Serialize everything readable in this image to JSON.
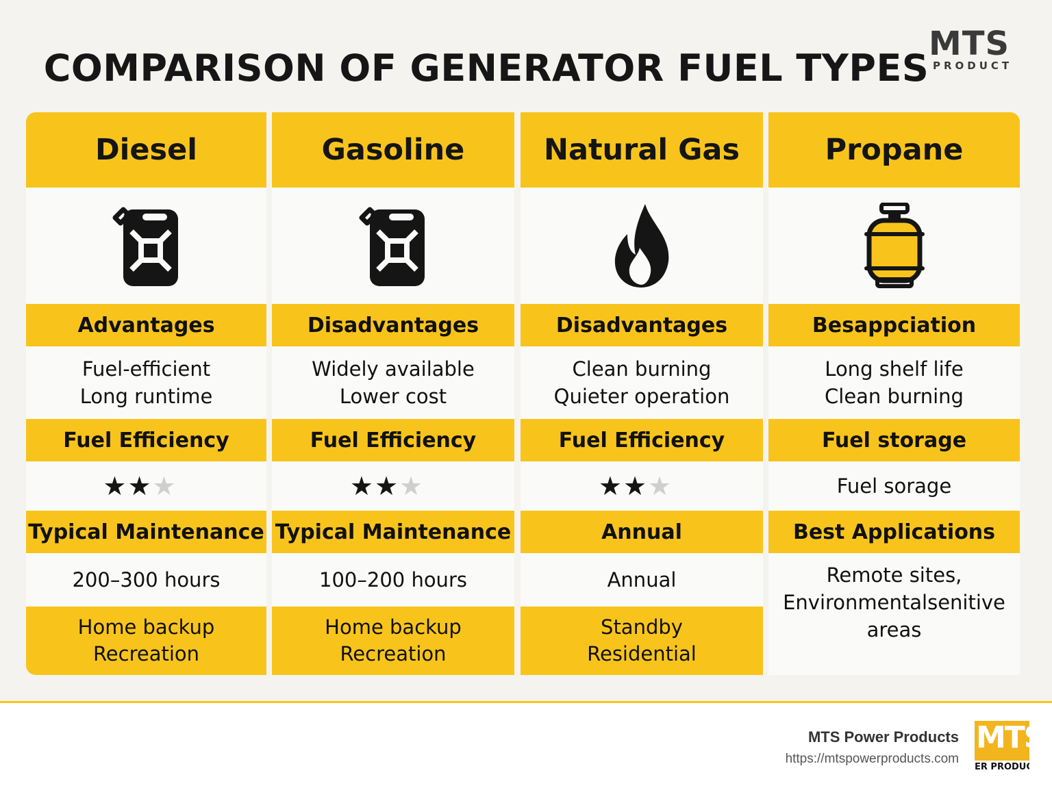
{
  "title": "COMPARISON OF GENERATOR FUEL TYPES",
  "logo": {
    "line1": "MTS",
    "line2": "PRODUCT"
  },
  "colors": {
    "accent": "#f8c41c",
    "text": "#151515",
    "panel": "#fafaf8",
    "star_off": "#cfcfcf"
  },
  "columns": [
    {
      "name": "Diesel",
      "icon": "jerry-can-icon",
      "section1": "Advantages",
      "text1": [
        "Fuel-efficient",
        "Long runtime"
      ],
      "section2": "Fuel Efficiency",
      "rating": 2,
      "rating_max": 3,
      "section3": "Typical Maintenance",
      "text3": "200–300 hours",
      "applications": [
        "Home backup",
        "Recreation"
      ]
    },
    {
      "name": "Gasoline",
      "icon": "jerry-can-icon",
      "section1": "Disadvantages",
      "text1": [
        "Widely available",
        "Lower cost"
      ],
      "section2": "Fuel Efficiency",
      "rating": 2,
      "rating_max": 3,
      "section3": "Typical Maintenance",
      "text3": "100–200 hours",
      "applications": [
        "Home backup",
        "Recreation"
      ]
    },
    {
      "name": "Natural Gas",
      "icon": "flame-icon",
      "section1": "Disadvantages",
      "text1": [
        "Clean burning",
        "Quieter operation"
      ],
      "section2": "Fuel Efficiency",
      "rating": 2,
      "rating_max": 3,
      "section3": "Annual",
      "text3": "Annual",
      "applications": [
        "Standby",
        "Residential"
      ]
    },
    {
      "name": "Propane",
      "icon": "propane-tank-icon",
      "section1": "Besappciation",
      "text1": [
        "Long shelf life",
        "Clean burning"
      ],
      "section2": "Fuel storage",
      "text2": "Fuel sorage",
      "section3": "Best Applications",
      "text3": [
        "Remote sites,",
        "Environmentalsenitive",
        "areas"
      ]
    }
  ],
  "footer": {
    "company": "MTS Power Products",
    "url": "https://mtspowerproducts.com",
    "logo_top": "MTS",
    "logo_bottom": "ER PRODUC"
  }
}
